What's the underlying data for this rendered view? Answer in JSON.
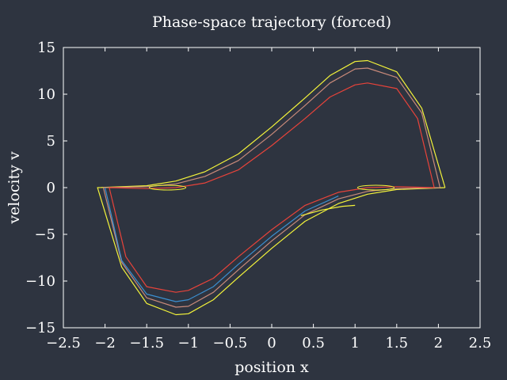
{
  "chart_data": {
    "type": "line",
    "title": "Phase-space trajectory (forced)",
    "xlabel": "position x",
    "ylabel": "velocity v",
    "xlim": [
      -2.5,
      2.5
    ],
    "ylim": [
      -15,
      15
    ],
    "xticks": [
      -2.5,
      -2,
      -1.5,
      -1,
      -0.5,
      0,
      0.5,
      1,
      1.5,
      2,
      2.5
    ],
    "yticks": [
      -15,
      -10,
      -5,
      0,
      5,
      10,
      15
    ],
    "xtick_labels": [
      "−2.5",
      "−2",
      "−1.5",
      "−1",
      "−0.5",
      "0",
      "0.5",
      "1",
      "1.5",
      "2",
      "2.5"
    ],
    "ytick_labels": [
      "−15",
      "−10",
      "−5",
      "0",
      "5",
      "10",
      "15"
    ],
    "grid": false,
    "legend": "none",
    "colors": {
      "background": "#2e3440",
      "axes": "#ffffff",
      "text": "#ffffff",
      "trajectory_outer": "#f4f43a",
      "trajectory_inner": "#e8433a",
      "trajectory_mid": "#c98a7a",
      "trajectory_blue": "#3b8fd0"
    },
    "series": [
      {
        "color": "#f4f43a",
        "x": [
          2.08,
          1.8,
          1.5,
          1.15,
          1.0,
          0.7,
          0.4,
          0.0,
          -0.4,
          -0.8,
          -1.15,
          -1.5,
          -2.09,
          -1.8,
          -1.5,
          -1.15,
          -1.0,
          -0.7,
          -0.4,
          0.0,
          0.4,
          0.8,
          1.15,
          1.5,
          2.08
        ],
        "y": [
          0.0,
          8.5,
          12.4,
          13.6,
          13.5,
          12.0,
          9.6,
          6.5,
          3.6,
          1.7,
          0.7,
          0.2,
          0.0,
          -8.5,
          -12.4,
          -13.6,
          -13.5,
          -12.0,
          -9.6,
          -6.5,
          -3.6,
          -1.7,
          -0.7,
          -0.2,
          0.0
        ]
      },
      {
        "color": "#c98a7a",
        "x": [
          2.02,
          1.8,
          1.5,
          1.15,
          1.0,
          0.7,
          0.4,
          0.0,
          -0.4,
          -0.8,
          -1.15,
          -1.5,
          -2.02,
          -1.8,
          -1.5,
          -1.15,
          -1.0,
          -0.7,
          -0.4,
          0.0,
          0.4,
          0.8,
          1.15,
          1.5,
          2.02
        ],
        "y": [
          0.0,
          8.0,
          11.8,
          12.8,
          12.7,
          11.2,
          8.8,
          5.7,
          2.9,
          1.2,
          0.4,
          0.1,
          0.0,
          -8.0,
          -11.8,
          -12.8,
          -12.7,
          -11.2,
          -8.8,
          -5.7,
          -2.9,
          -1.2,
          -0.4,
          -0.1,
          0.0
        ]
      },
      {
        "color": "#3b8fd0",
        "x": [
          -2.0,
          -1.8,
          -1.5,
          -1.15,
          -1.0,
          -0.7,
          -0.4,
          0.0,
          0.4,
          0.8
        ],
        "y": [
          0.0,
          -7.8,
          -11.4,
          -12.2,
          -12.0,
          -10.6,
          -8.2,
          -5.2,
          -2.5,
          -0.9
        ]
      },
      {
        "color": "#e8433a",
        "x": [
          1.95,
          1.75,
          1.5,
          1.15,
          1.0,
          0.7,
          0.4,
          0.0,
          -0.4,
          -0.8,
          -1.15,
          -1.5,
          -1.95,
          -1.75,
          -1.5,
          -1.15,
          -1.0,
          -0.7,
          -0.4,
          0.0,
          0.4,
          0.8,
          1.15,
          1.5,
          1.95
        ],
        "y": [
          0.0,
          7.4,
          10.6,
          11.2,
          11.0,
          9.7,
          7.4,
          4.5,
          1.9,
          0.5,
          0.0,
          -0.1,
          0.0,
          -7.4,
          -10.6,
          -11.2,
          -11.0,
          -9.7,
          -7.4,
          -4.5,
          -1.9,
          -0.5,
          0.0,
          0.1,
          0.0
        ]
      },
      {
        "color": "#f4f43a",
        "x": [
          0.35,
          0.6,
          0.85,
          1.0
        ],
        "y": [
          -3.0,
          -2.4,
          -2.0,
          -1.9
        ]
      }
    ],
    "loops": [
      {
        "color": "#f4f43a",
        "cx": -1.25,
        "cy": 0.0,
        "rx": 0.22,
        "ry": 0.25
      },
      {
        "color": "#f4f43a",
        "cx": 1.25,
        "cy": 0.0,
        "rx": 0.22,
        "ry": 0.25
      }
    ]
  }
}
